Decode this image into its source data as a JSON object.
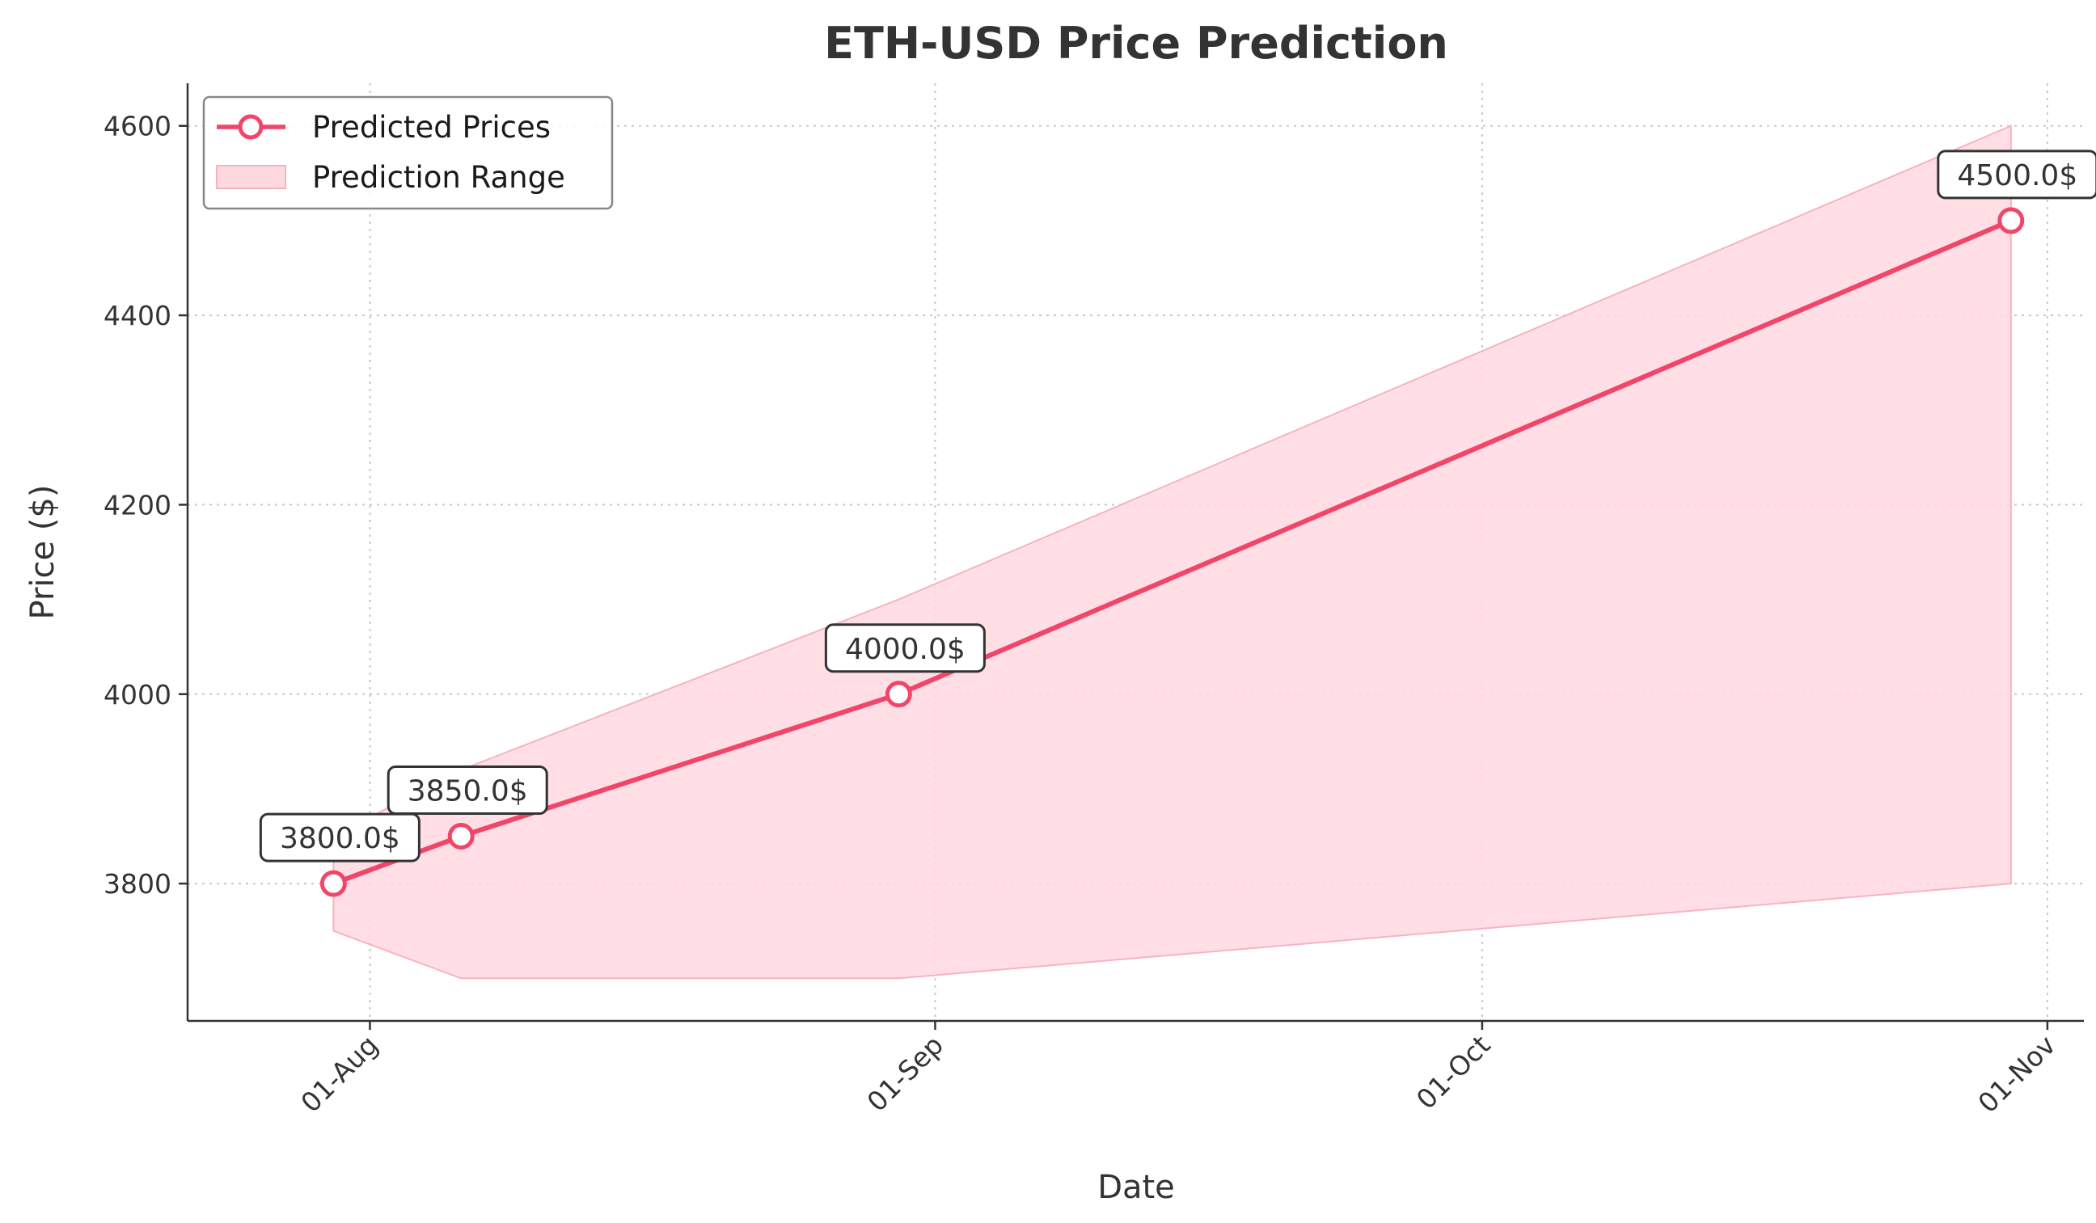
{
  "chart_data": {
    "type": "line",
    "title": "ETH-USD Price Prediction",
    "xlabel": "Date",
    "ylabel": "Price ($)",
    "x_tick_labels": [
      "01-Aug",
      "01-Sep",
      "01-Oct",
      "01-Nov"
    ],
    "y_ticks": [
      3800,
      4000,
      4200,
      4400,
      4600
    ],
    "ylim": [
      3655,
      4645
    ],
    "grid": true,
    "legend_position": "top-left",
    "colors": {
      "line": "#f2456a",
      "band_fill": "#ffd9e0",
      "band_edge": "#f7b3c1",
      "grid": "#c8c8c8",
      "text": "#333333"
    },
    "series": [
      {
        "name": "Predicted Prices",
        "x": [
          "2024-07-30",
          "2024-08-06",
          "2024-08-30",
          "2024-10-30"
        ],
        "values": [
          3800,
          3850,
          4000,
          4500
        ],
        "labels": [
          "3800.0$",
          "3850.0$",
          "4000.0$",
          "4500.0$"
        ]
      },
      {
        "name": "Prediction Range",
        "x": [
          "2024-07-30",
          "2024-08-06",
          "2024-08-30",
          "2024-10-30"
        ],
        "low": [
          3750,
          3700,
          3700,
          3800
        ],
        "high": [
          3850,
          3920,
          4100,
          4600
        ]
      }
    ]
  }
}
